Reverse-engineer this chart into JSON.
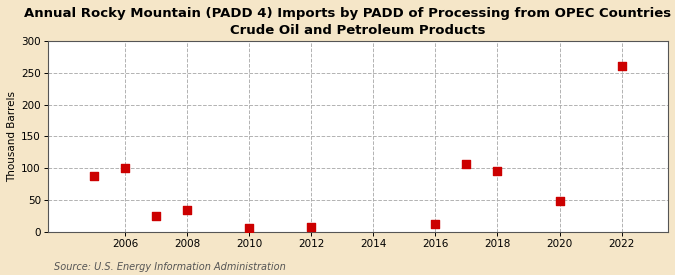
{
  "title": "Annual Rocky Mountain (PADD 4) Imports by PADD of Processing from OPEC Countries of\nCrude Oil and Petroleum Products",
  "ylabel": "Thousand Barrels",
  "source": "Source: U.S. Energy Information Administration",
  "figure_bg_color": "#f5e6c8",
  "plot_bg_color": "#ffffff",
  "scatter_color": "#cc0000",
  "x_data": [
    2005,
    2006,
    2007,
    2008,
    2010,
    2012,
    2016,
    2017,
    2018,
    2020,
    2022
  ],
  "y_data": [
    88,
    100,
    25,
    35,
    6,
    8,
    13,
    106,
    95,
    48,
    260
  ],
  "xlim": [
    2003.5,
    2023.5
  ],
  "ylim": [
    0,
    300
  ],
  "yticks": [
    0,
    50,
    100,
    150,
    200,
    250,
    300
  ],
  "xticks": [
    2006,
    2008,
    2010,
    2012,
    2014,
    2016,
    2018,
    2020,
    2022
  ],
  "title_fontsize": 9.5,
  "ylabel_fontsize": 7.5,
  "tick_fontsize": 7.5,
  "source_fontsize": 7,
  "marker_size": 36,
  "grid_color": "#aaaaaa",
  "spine_color": "#555555"
}
